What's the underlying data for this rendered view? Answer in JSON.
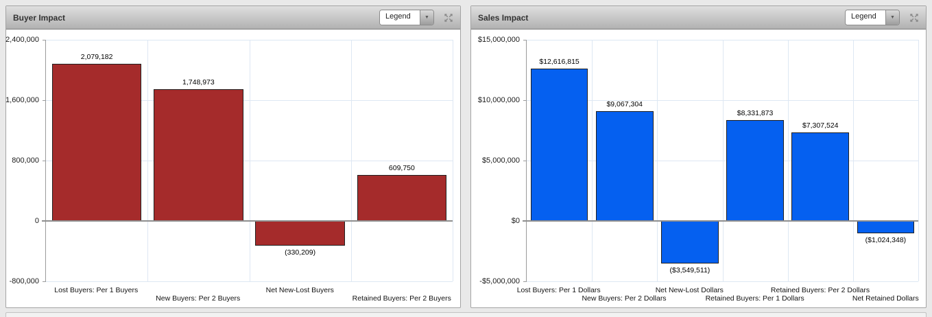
{
  "page": {
    "background": "#E9E9E9"
  },
  "panels": [
    {
      "title": "Buyer Impact",
      "legend_label": "Legend",
      "dropdown_arrow": "▼"
    },
    {
      "title": "Sales Impact",
      "legend_label": "Legend",
      "dropdown_arrow": "▼"
    }
  ],
  "chart_data": [
    {
      "type": "bar",
      "title": "Buyer Impact",
      "categories": [
        "Lost Buyers: Per 1 Buyers",
        "New Buyers: Per 2 Buyers",
        "Net New-Lost Buyers",
        "Retained Buyers: Per 2 Buyers"
      ],
      "values": [
        2079182,
        1748973,
        -330209,
        609750
      ],
      "data_labels": [
        "2,079,182",
        "1,748,973",
        "(330,209)",
        "609,750"
      ],
      "bar_color": "#A52B2B",
      "xlabel": "",
      "ylabel": "",
      "ylim": [
        -800000,
        2400000
      ],
      "yticks": [
        2400000,
        1600000,
        800000,
        0,
        -800000
      ],
      "ytick_labels": [
        "2,400,000",
        "1,600,000",
        "800,000",
        "0",
        "-800,000"
      ],
      "grid": true,
      "gridline_color": "#DDE7F3",
      "legend_position": "collapsed-dropdown"
    },
    {
      "type": "bar",
      "title": "Sales Impact",
      "categories": [
        "Lost Buyers: Per 1 Dollars",
        "New Buyers: Per 2 Dollars",
        "Net New-Lost Dollars",
        "Retained Buyers: Per 1 Dollars",
        "Retained Buyers: Per 2 Dollars",
        "Net Retained Dollars"
      ],
      "values": [
        12616815,
        9067304,
        -3549511,
        8331873,
        7307524,
        -1024348
      ],
      "data_labels": [
        "$12,616,815",
        "$9,067,304",
        "($3,549,511)",
        "$8,331,873",
        "$7,307,524",
        "($1,024,348)"
      ],
      "bar_color": "#0560F0",
      "xlabel": "",
      "ylabel": "",
      "ylim": [
        -5000000,
        15000000
      ],
      "yticks": [
        15000000,
        10000000,
        5000000,
        0,
        -5000000
      ],
      "ytick_labels": [
        "$15,000,000",
        "$10,000,000",
        "$5,000,000",
        "$0",
        "-$5,000,000"
      ],
      "grid": true,
      "gridline_color": "#DDE7F3",
      "legend_position": "collapsed-dropdown"
    }
  ]
}
